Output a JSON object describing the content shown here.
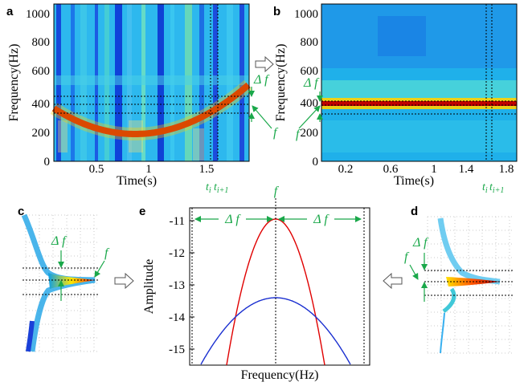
{
  "panels": {
    "a": {
      "letter": "a",
      "ylabel": "Frequency(Hz)",
      "xlabel": "Time(s)",
      "yticks": [
        "1000",
        "800",
        "600",
        "400",
        "200",
        "0"
      ],
      "xticks": [
        "0.5",
        "1",
        "1.5"
      ],
      "delta_label": "Δ f",
      "f_label": "f",
      "ti_label": "t",
      "ti_sub": "i",
      "ti1_label": "t",
      "ti1_sub": "i+1"
    },
    "b": {
      "letter": "b",
      "ylabel": "Frequency(Hz)",
      "xlabel": "Time(s)",
      "yticks": [
        "1000",
        "800",
        "600",
        "400",
        "200",
        "0"
      ],
      "xticks": [
        "0.2",
        "0.6",
        "1",
        "1.4",
        "1.8"
      ],
      "delta_label": "Δ f",
      "f_label": "f",
      "ti_label": "t",
      "ti_sub": "i",
      "ti1_label": "t",
      "ti1_sub": "i+1"
    },
    "c": {
      "letter": "c",
      "delta_label": "Δ f",
      "f_label": "f"
    },
    "d": {
      "letter": "d",
      "delta_label": "Δ f",
      "f_label": "f"
    },
    "e": {
      "letter": "e",
      "ylabel": "Amplitude",
      "xlabel": "Frequency(Hz)",
      "yticks": [
        "-11",
        "-12",
        "-13",
        "-14",
        "-15"
      ],
      "delta_left": "Δ f",
      "delta_right": "Δ f",
      "f_label": "f"
    }
  },
  "colors": {
    "accent_green": "#1aa84a",
    "red_curve": "#e00000",
    "blue_curve": "#1a2fd0",
    "jet_low": "#0a2bd6",
    "jet_high": "#c00000"
  },
  "chart_data": {
    "type": "line",
    "title": "",
    "xlabel": "Frequency(Hz)",
    "ylabel": "Amplitude",
    "ylim": [
      -15.5,
      -10.6
    ],
    "yticks": [
      -11,
      -12,
      -13,
      -14,
      -15
    ],
    "series": [
      {
        "peak": -10.95,
        "shape": "narrow",
        "color": "#e00000"
      },
      {
        "peak": -13.4,
        "shape": "wide",
        "color": "#1a2fd0"
      }
    ]
  }
}
